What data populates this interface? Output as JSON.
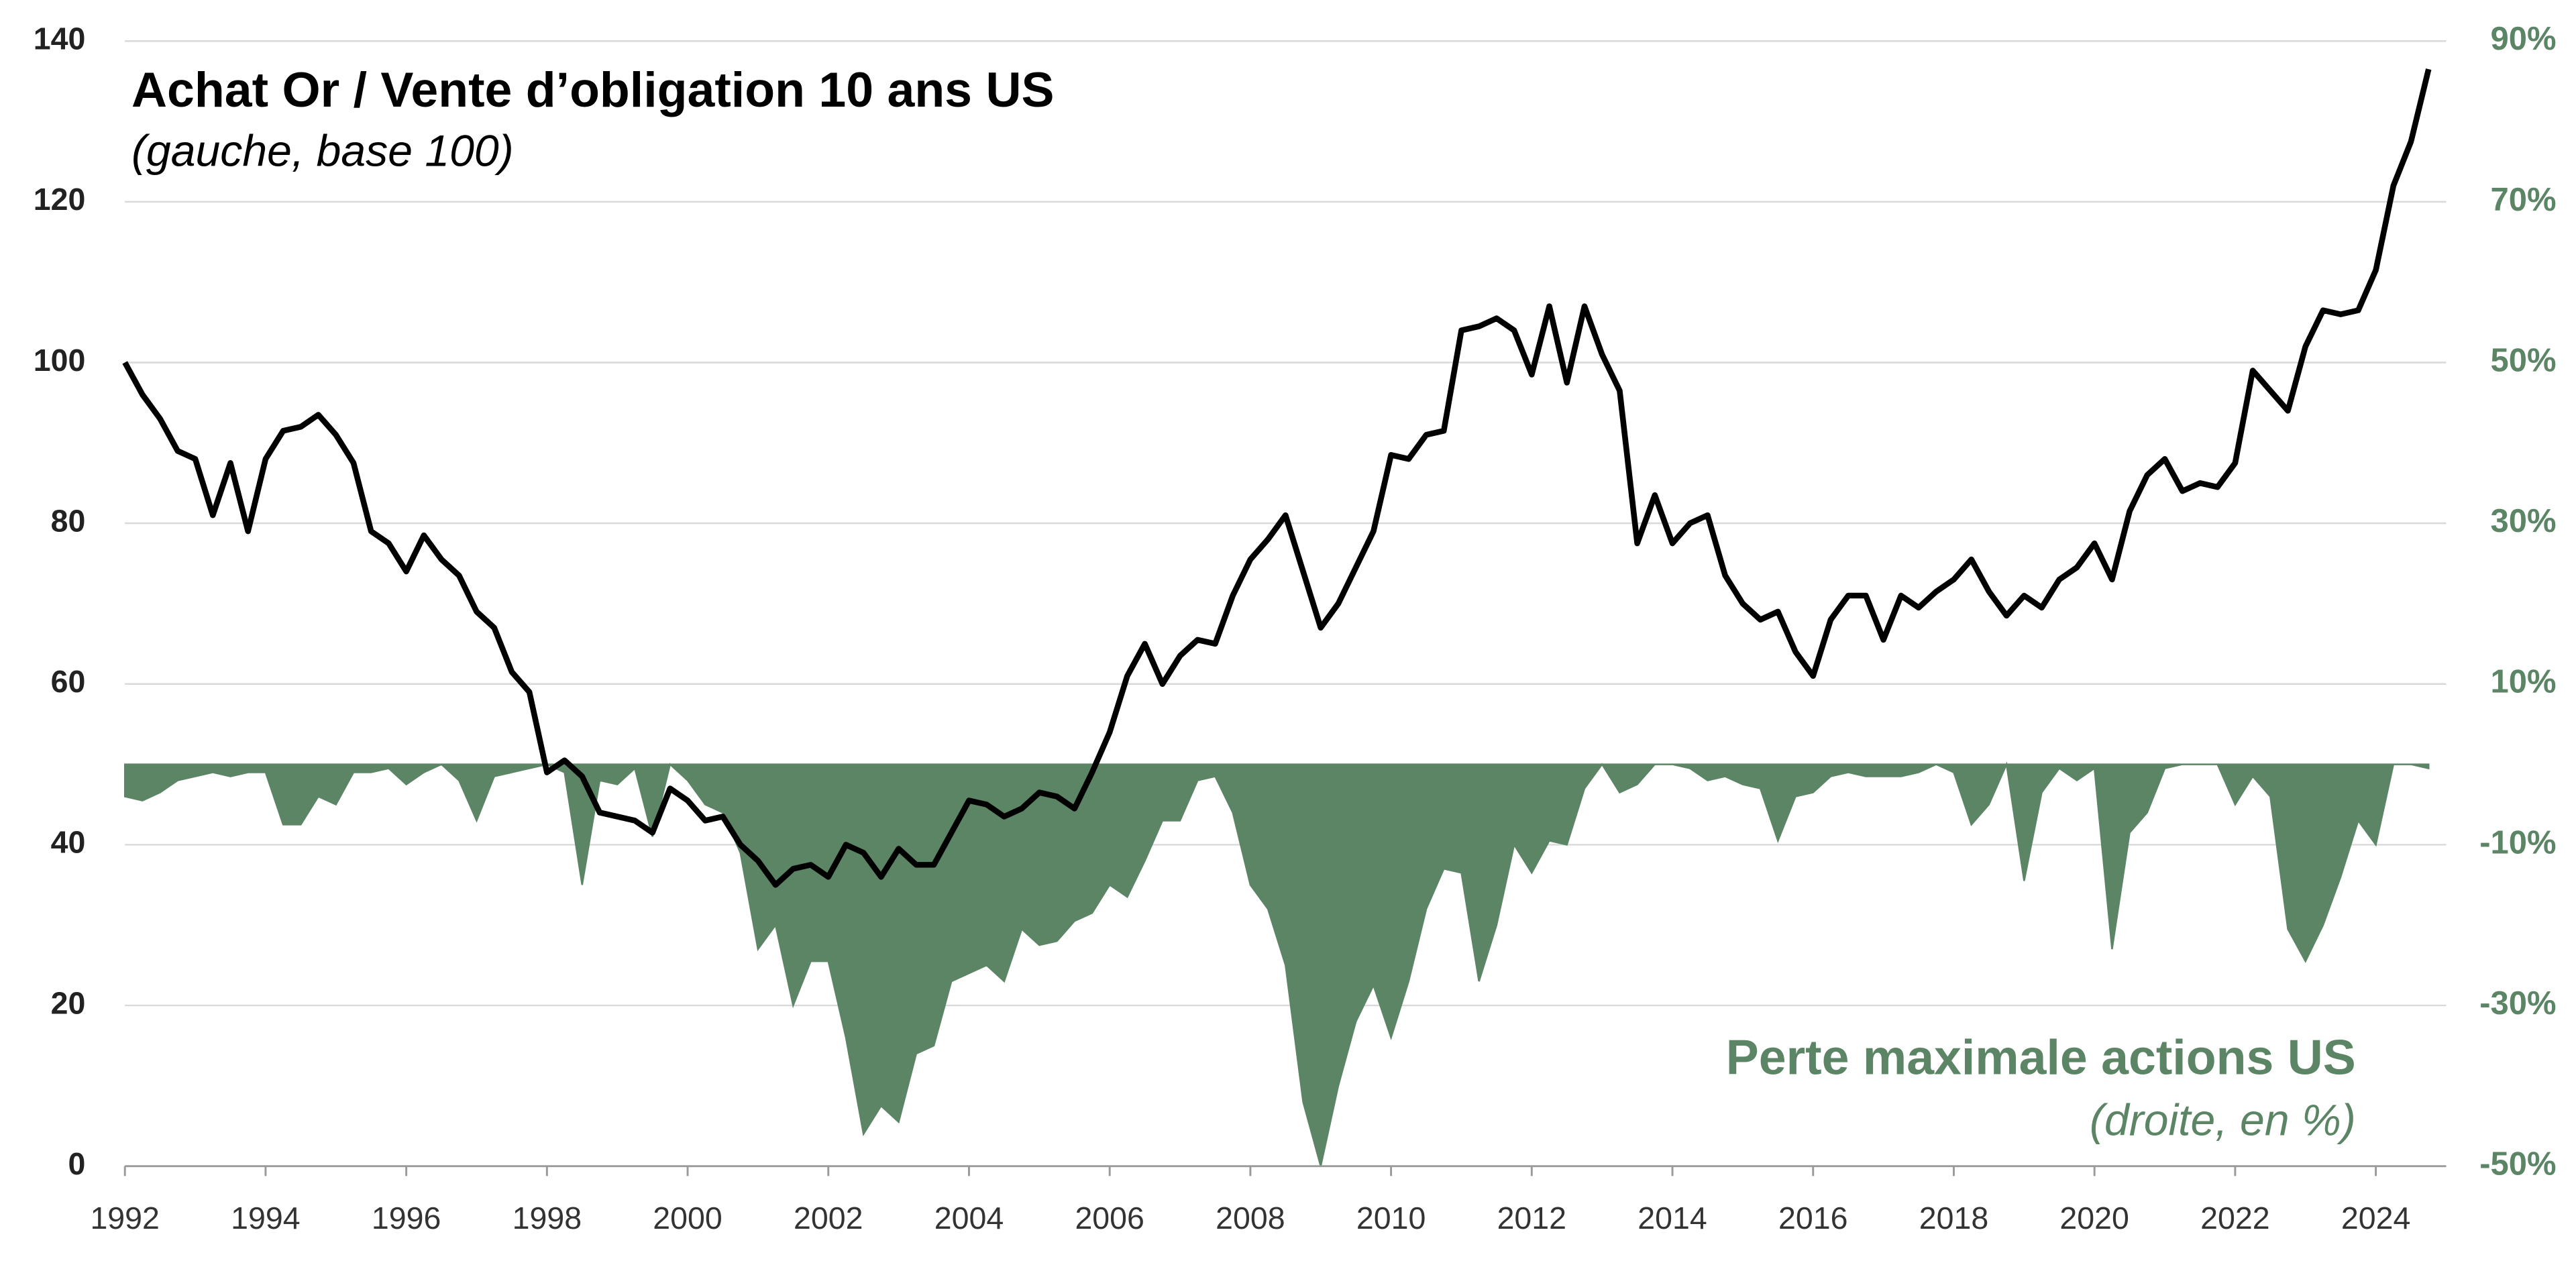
{
  "chart_data": {
    "type": "line",
    "x": [
      1992,
      1992.25,
      1992.5,
      1992.75,
      1993,
      1993.25,
      1993.5,
      1993.75,
      1994,
      1994.25,
      1994.5,
      1994.75,
      1995,
      1995.25,
      1995.5,
      1995.75,
      1996,
      1996.25,
      1996.5,
      1996.75,
      1997,
      1997.25,
      1997.5,
      1997.75,
      1998,
      1998.25,
      1998.5,
      1998.75,
      1999,
      1999.25,
      1999.5,
      1999.75,
      2000,
      2000.25,
      2000.5,
      2000.75,
      2001,
      2001.25,
      2001.5,
      2001.75,
      2002,
      2002.25,
      2002.5,
      2002.75,
      2003,
      2003.25,
      2003.5,
      2003.75,
      2004,
      2004.25,
      2004.5,
      2004.75,
      2005,
      2005.25,
      2005.5,
      2005.75,
      2006,
      2006.25,
      2006.5,
      2006.75,
      2007,
      2007.25,
      2007.5,
      2007.75,
      2008,
      2008.25,
      2008.5,
      2008.75,
      2009,
      2009.25,
      2009.5,
      2009.75,
      2010,
      2010.25,
      2010.5,
      2010.75,
      2011,
      2011.25,
      2011.5,
      2011.75,
      2012,
      2012.25,
      2012.5,
      2012.75,
      2013,
      2013.25,
      2013.5,
      2013.75,
      2014,
      2014.25,
      2014.5,
      2014.75,
      2015,
      2015.25,
      2015.5,
      2015.75,
      2016,
      2016.25,
      2016.5,
      2016.75,
      2017,
      2017.25,
      2017.5,
      2017.75,
      2018,
      2018.25,
      2018.5,
      2018.75,
      2019,
      2019.25,
      2019.5,
      2019.75,
      2020,
      2020.25,
      2020.5,
      2020.75,
      2021,
      2021.25,
      2021.5,
      2021.75,
      2022,
      2022.25,
      2022.5,
      2022.75,
      2023,
      2023.25,
      2023.5,
      2023.75,
      2024,
      2024.25,
      2024.5,
      2024.75
    ],
    "series": [
      {
        "name": "Perte maximale actions US",
        "subtitle": "(droite, en %)",
        "type": "area",
        "axis": "y2",
        "color": "#5c8565",
        "values": [
          -4,
          -4.5,
          -3.5,
          -2,
          -1.5,
          -1,
          -1.5,
          -1,
          -1,
          -7.5,
          -7.5,
          -4,
          -5,
          -1,
          -1,
          -0.5,
          -2.5,
          -1,
          0,
          -2,
          -7,
          -1.5,
          -1,
          -0.5,
          0,
          -1,
          -15,
          -2,
          -2.5,
          -0.5,
          -9,
          0,
          -2,
          -5,
          -6,
          -11,
          -23,
          -20,
          -30,
          -24.5,
          -24.5,
          -34,
          -46,
          -42.5,
          -44.5,
          -36,
          -35,
          -27,
          -26,
          -25,
          -27,
          -20.5,
          -22.5,
          -22,
          -19.5,
          -18.5,
          -15,
          -16.5,
          -12,
          -7,
          -7,
          -2,
          -1.5,
          -6,
          -15,
          -18,
          -25,
          -42,
          -50,
          -40,
          -32,
          -27.5,
          -34,
          -27,
          -18,
          -13,
          -13.5,
          -27,
          -20,
          -10,
          -13.5,
          -9.5,
          -10,
          -3,
          0,
          -3.5,
          -2.5,
          0,
          0,
          -0.5,
          -2,
          -1.5,
          -2.5,
          -3,
          -9.5,
          -4,
          -3.5,
          -1.5,
          -1,
          -1.5,
          -1.5,
          -1.5,
          -1,
          0,
          -1,
          -7.5,
          -5,
          0,
          -14.5,
          -3.5,
          -0.5,
          -2,
          -0.5,
          -23,
          -8.5,
          -6,
          -0.5,
          0,
          0,
          0,
          -5,
          -1.5,
          -4,
          -20.5,
          -24.5,
          -20,
          -14,
          -7,
          -10,
          0,
          0,
          -0.5
        ]
      },
      {
        "name": "Achat Or / Vente d’obligation 10 ans US",
        "subtitle": "(gauche, base 100)",
        "type": "line",
        "color": "#000000",
        "values": [
          100,
          96,
          93,
          89,
          88,
          81,
          87.5,
          79,
          88,
          91.5,
          92,
          93.5,
          91,
          87.5,
          79,
          77.5,
          74,
          78.5,
          75.5,
          73.5,
          69,
          67,
          61.5,
          59,
          49,
          50.5,
          48.5,
          44,
          43.5,
          43,
          41.5,
          47,
          45.5,
          43,
          43.5,
          40,
          38,
          35,
          37,
          37.5,
          36,
          40,
          39,
          36,
          39.5,
          37.5,
          37.5,
          41.5,
          45.5,
          45,
          43.5,
          44.5,
          46.5,
          46,
          44.5,
          49,
          54,
          61,
          65,
          60,
          63.5,
          65.5,
          65,
          71,
          75.5,
          78,
          81,
          74,
          67,
          70,
          74.5,
          79,
          88.5,
          88,
          91,
          91.5,
          104,
          104.5,
          105.5,
          104,
          98.5,
          107,
          97.5,
          107,
          101,
          96.5,
          77.5,
          83.5,
          77.5,
          80,
          81,
          73.5,
          70,
          68,
          69,
          64,
          61,
          68,
          71,
          71,
          65.5,
          71,
          69.5,
          71.5,
          73,
          75.5,
          71.5,
          68.5,
          71,
          69.5,
          73,
          74.5,
          77.5,
          73,
          81.5,
          86,
          88,
          84,
          85,
          84.5,
          87.5,
          99,
          96.5,
          94,
          102,
          106.5,
          106,
          106.5,
          111.5,
          122,
          127.5,
          136.5
        ]
      }
    ],
    "xlim": [
      1992,
      2025
    ],
    "xticks": [
      1992,
      1994,
      1996,
      1998,
      2000,
      2002,
      2004,
      2006,
      2008,
      2010,
      2012,
      2014,
      2016,
      2018,
      2020,
      2022,
      2024
    ],
    "ylim": [
      0,
      140
    ],
    "yticks": [
      0,
      20,
      40,
      60,
      80,
      100,
      120,
      140
    ],
    "y2lim": [
      -50,
      90
    ],
    "y2ticks": [
      {
        "value": -50,
        "label": "-50%"
      },
      {
        "value": -30,
        "label": "-30%"
      },
      {
        "value": -10,
        "label": "-10%"
      },
      {
        "value": 10,
        "label": "10%"
      },
      {
        "value": 30,
        "label": "30%"
      },
      {
        "value": 50,
        "label": "50%"
      },
      {
        "value": 70,
        "label": "70%"
      },
      {
        "value": 90,
        "label": "90%"
      }
    ],
    "y2color": "#5c8565",
    "grid": true
  }
}
